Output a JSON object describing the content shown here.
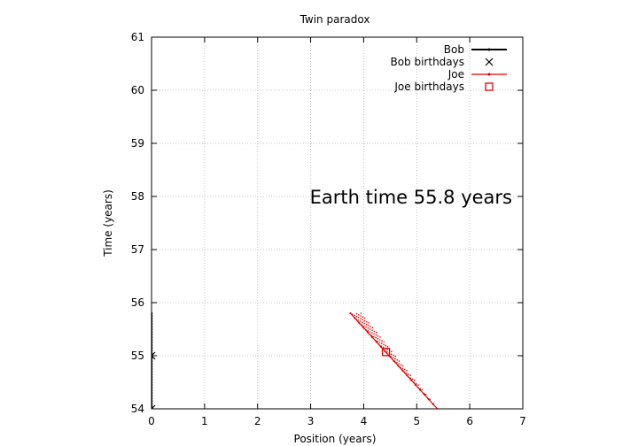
{
  "chart_data": {
    "type": "line",
    "title": "Twin paradox",
    "xlabel": "Position (years)",
    "ylabel": "Time (years)",
    "xlim": [
      0,
      7
    ],
    "ylim": [
      54,
      61
    ],
    "xticks": [
      "0",
      "1",
      "2",
      "3",
      "4",
      "5",
      "6",
      "7"
    ],
    "yticks": [
      "54",
      "55",
      "56",
      "57",
      "58",
      "59",
      "60",
      "61"
    ],
    "grid": true,
    "legend": "top-right",
    "annotation": "Earth time 55.8 years",
    "series": [
      {
        "name": "Bob",
        "color": "#000000",
        "style": "line-points",
        "points": [
          [
            0,
            54.0
          ],
          [
            0,
            55.8
          ]
        ]
      },
      {
        "name": "Bob birthdays",
        "color": "#000000",
        "style": "cross",
        "points": [
          [
            0,
            54.0
          ],
          [
            0,
            55.0
          ]
        ]
      },
      {
        "name": "Joe",
        "color": "#e00000",
        "style": "line-points",
        "points": [
          [
            3.75,
            55.8
          ],
          [
            5.39,
            54.0
          ]
        ],
        "trail_dots": {
          "emit_times": [
            54.0,
            54.2,
            54.4,
            54.6,
            54.8,
            55.0,
            55.2,
            55.4,
            55.6,
            55.8
          ],
          "slope": -0.912,
          "speed": 0.8,
          "x_at_54": 5.39
        }
      },
      {
        "name": "Joe birthdays",
        "color": "#e00000",
        "style": "square",
        "points": [
          [
            4.42,
            55.07
          ]
        ]
      }
    ]
  }
}
